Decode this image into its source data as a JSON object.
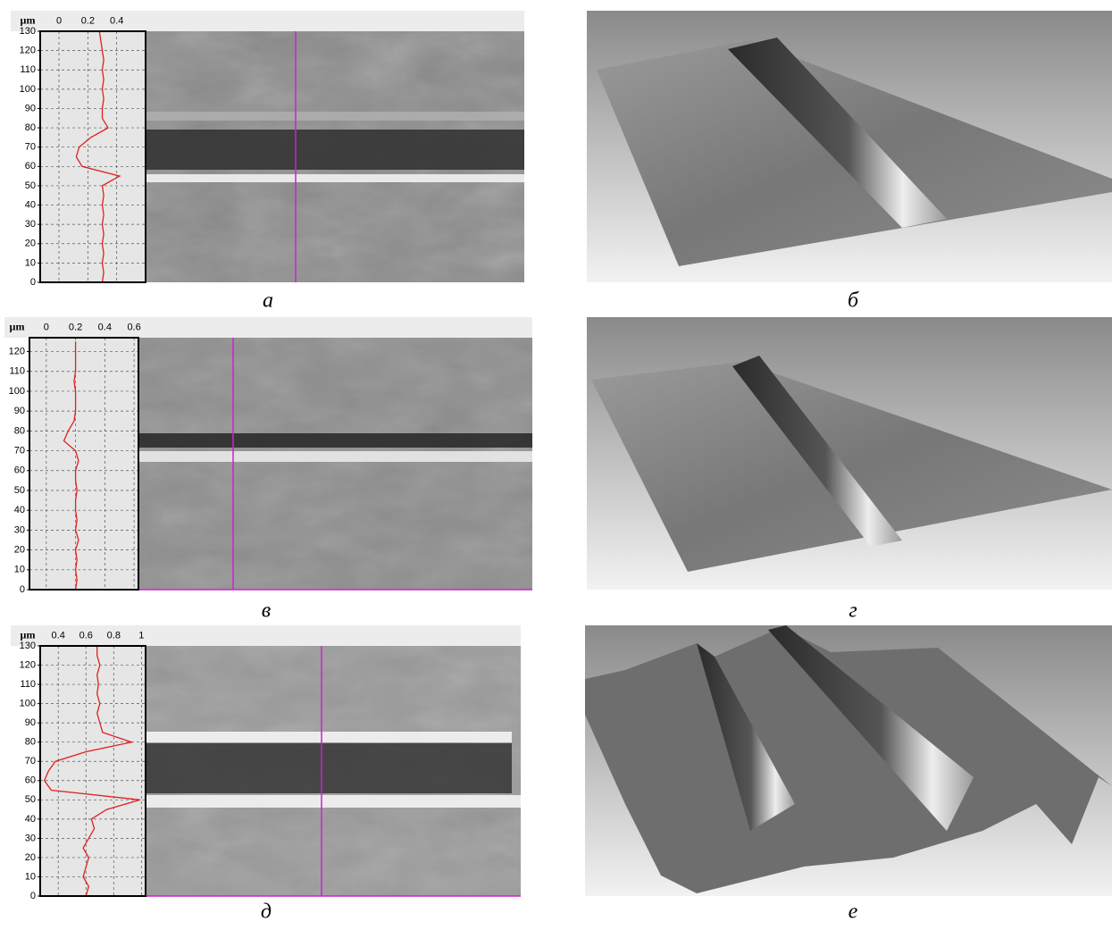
{
  "chart_data": [
    {
      "type": "line",
      "orientation": "horizontal",
      "ylabel": "µm",
      "grid": true,
      "xlim": [
        -0.13,
        0.6
      ],
      "xticks": [
        0,
        0.2,
        0.4
      ],
      "ylim": [
        0,
        130
      ],
      "yticks": [
        0,
        10,
        20,
        30,
        40,
        50,
        60,
        70,
        80,
        90,
        100,
        110,
        120,
        130
      ],
      "series": [
        {
          "color": "#e02020",
          "x": [
            0,
            5,
            10,
            15,
            20,
            25,
            30,
            35,
            40,
            45,
            50,
            55,
            60,
            65,
            70,
            75,
            80,
            85,
            90,
            95,
            100,
            105,
            110,
            115,
            120,
            125,
            130
          ],
          "values": [
            0.3,
            0.31,
            0.3,
            0.31,
            0.3,
            0.31,
            0.3,
            0.31,
            0.3,
            0.31,
            0.3,
            0.42,
            0.16,
            0.12,
            0.14,
            0.22,
            0.34,
            0.3,
            0.3,
            0.31,
            0.3,
            0.31,
            0.3,
            0.31,
            0.3,
            0.29,
            0.28
          ]
        }
      ]
    },
    {
      "type": "line",
      "orientation": "horizontal",
      "ylabel": "µm",
      "grid": true,
      "xlim": [
        -0.115,
        0.63
      ],
      "xticks": [
        0,
        0.2,
        0.4,
        0.6
      ],
      "ylim": [
        0,
        127
      ],
      "yticks": [
        0,
        10,
        20,
        30,
        40,
        50,
        60,
        70,
        80,
        90,
        100,
        110,
        120
      ],
      "series": [
        {
          "color": "#e02020",
          "x": [
            0,
            5,
            10,
            15,
            20,
            25,
            30,
            35,
            40,
            45,
            50,
            55,
            60,
            65,
            70,
            75,
            80,
            85,
            90,
            95,
            100,
            105,
            110,
            115,
            120,
            125
          ],
          "values": [
            0.2,
            0.21,
            0.2,
            0.21,
            0.2,
            0.22,
            0.2,
            0.21,
            0.2,
            0.2,
            0.21,
            0.2,
            0.2,
            0.22,
            0.2,
            0.12,
            0.15,
            0.19,
            0.2,
            0.2,
            0.2,
            0.19,
            0.2,
            0.2,
            0.2,
            0.2
          ]
        }
      ]
    },
    {
      "type": "line",
      "orientation": "horizontal",
      "ylabel": "µm",
      "grid": true,
      "xlim": [
        0.27,
        1.03
      ],
      "xticks": [
        0.4,
        0.6,
        0.8,
        1
      ],
      "ylim": [
        0,
        130
      ],
      "yticks": [
        0,
        10,
        20,
        30,
        40,
        50,
        60,
        70,
        80,
        90,
        100,
        110,
        120,
        130
      ],
      "series": [
        {
          "color": "#e02020",
          "x": [
            0,
            5,
            10,
            15,
            20,
            25,
            30,
            35,
            40,
            45,
            50,
            55,
            60,
            65,
            70,
            75,
            80,
            85,
            90,
            95,
            100,
            105,
            110,
            115,
            120,
            125,
            130
          ],
          "values": [
            0.6,
            0.62,
            0.58,
            0.6,
            0.62,
            0.58,
            0.62,
            0.66,
            0.64,
            0.75,
            0.99,
            0.35,
            0.3,
            0.33,
            0.38,
            0.6,
            0.93,
            0.72,
            0.7,
            0.68,
            0.7,
            0.68,
            0.69,
            0.68,
            0.7,
            0.68,
            0.68
          ]
        }
      ]
    }
  ],
  "captions": [
    "а",
    "б",
    "в",
    "г",
    "д",
    "е"
  ]
}
